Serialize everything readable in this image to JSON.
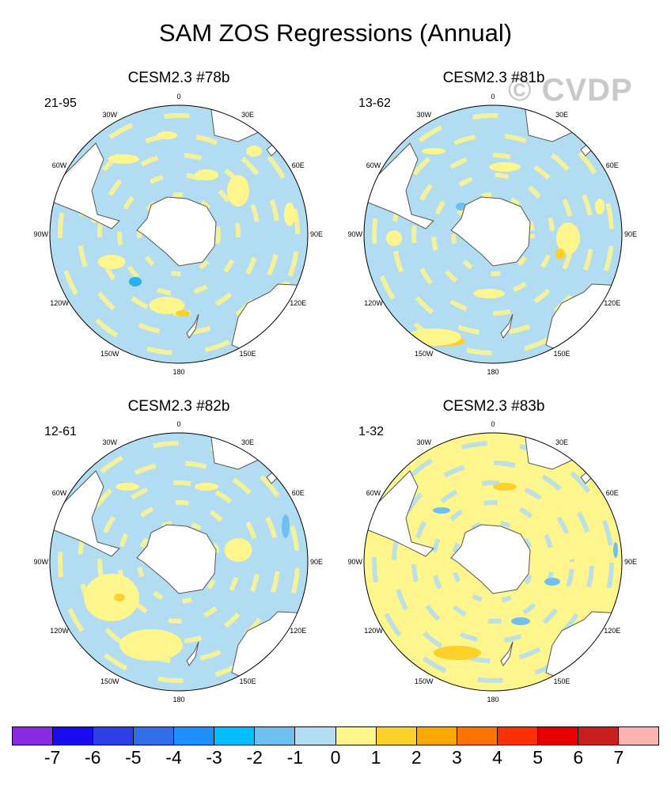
{
  "title": "SAM ZOS Regressions (Annual)",
  "watermark": "© CVDP",
  "colors": {
    "ocean_neutral": "#b2dcf2",
    "positive_1": "#fef58c",
    "positive_2": "#fcd22a",
    "negative_2": "#6ec0f0",
    "negative_3": "#28b0f0",
    "land": "#ffffff",
    "coast": "#555555"
  },
  "longitude_labels": [
    "0",
    "30E",
    "60E",
    "90E",
    "120E",
    "150E",
    "180",
    "150W",
    "120W",
    "90W",
    "60W",
    "30W"
  ],
  "panels": [
    {
      "title": "CESM2.3 #78b",
      "range": "21-95"
    },
    {
      "title": "CESM2.3 #81b",
      "range": "13-62"
    },
    {
      "title": "CESM2.3 #82b",
      "range": "12-61"
    },
    {
      "title": "CESM2.3 #83b",
      "range": "1-32"
    }
  ],
  "colorbar": {
    "labels": [
      "-7",
      "-6",
      "-5",
      "-4",
      "-3",
      "-2",
      "-1",
      "0",
      "1",
      "2",
      "3",
      "4",
      "5",
      "6",
      "7"
    ],
    "colors": [
      "#8a2be2",
      "#1a0cf0",
      "#2f3fe6",
      "#2e6fe8",
      "#1e90ff",
      "#00bfff",
      "#6ec0f0",
      "#b2dcf2",
      "#fef58c",
      "#fcd22a",
      "#fca800",
      "#fc7300",
      "#fc3000",
      "#e60000",
      "#c81e1e",
      "#ffb4b4"
    ]
  }
}
